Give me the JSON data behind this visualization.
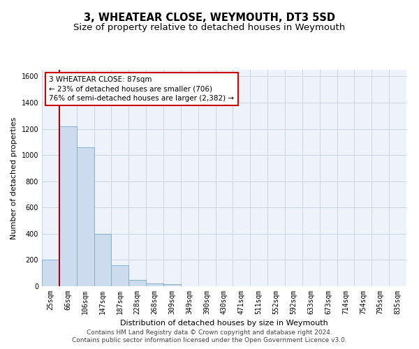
{
  "title": "3, WHEATEAR CLOSE, WEYMOUTH, DT3 5SD",
  "subtitle": "Size of property relative to detached houses in Weymouth",
  "xlabel": "Distribution of detached houses by size in Weymouth",
  "ylabel": "Number of detached properties",
  "categories": [
    "25sqm",
    "66sqm",
    "106sqm",
    "147sqm",
    "187sqm",
    "228sqm",
    "268sqm",
    "309sqm",
    "349sqm",
    "390sqm",
    "430sqm",
    "471sqm",
    "511sqm",
    "552sqm",
    "592sqm",
    "633sqm",
    "673sqm",
    "714sqm",
    "754sqm",
    "795sqm",
    "835sqm"
  ],
  "values": [
    200,
    1220,
    1060,
    400,
    160,
    50,
    20,
    15,
    0,
    0,
    0,
    0,
    0,
    0,
    0,
    0,
    0,
    0,
    0,
    0,
    0
  ],
  "bar_color": "#ccdcee",
  "bar_edge_color": "#7aaac8",
  "vline_color": "#aa0000",
  "annotation_text": "3 WHEATEAR CLOSE: 87sqm\n← 23% of detached houses are smaller (706)\n76% of semi-detached houses are larger (2,382) →",
  "annotation_box_color": "#cc0000",
  "ylim": [
    0,
    1650
  ],
  "yticks": [
    0,
    200,
    400,
    600,
    800,
    1000,
    1200,
    1400,
    1600
  ],
  "grid_color": "#c8d4e4",
  "background_color": "#eef2fa",
  "footer1": "Contains HM Land Registry data © Crown copyright and database right 2024.",
  "footer2": "Contains public sector information licensed under the Open Government Licence v3.0.",
  "title_fontsize": 10.5,
  "subtitle_fontsize": 9.5,
  "annotation_fontsize": 7.5,
  "axis_label_fontsize": 8,
  "tick_fontsize": 7,
  "footer_fontsize": 6.5
}
